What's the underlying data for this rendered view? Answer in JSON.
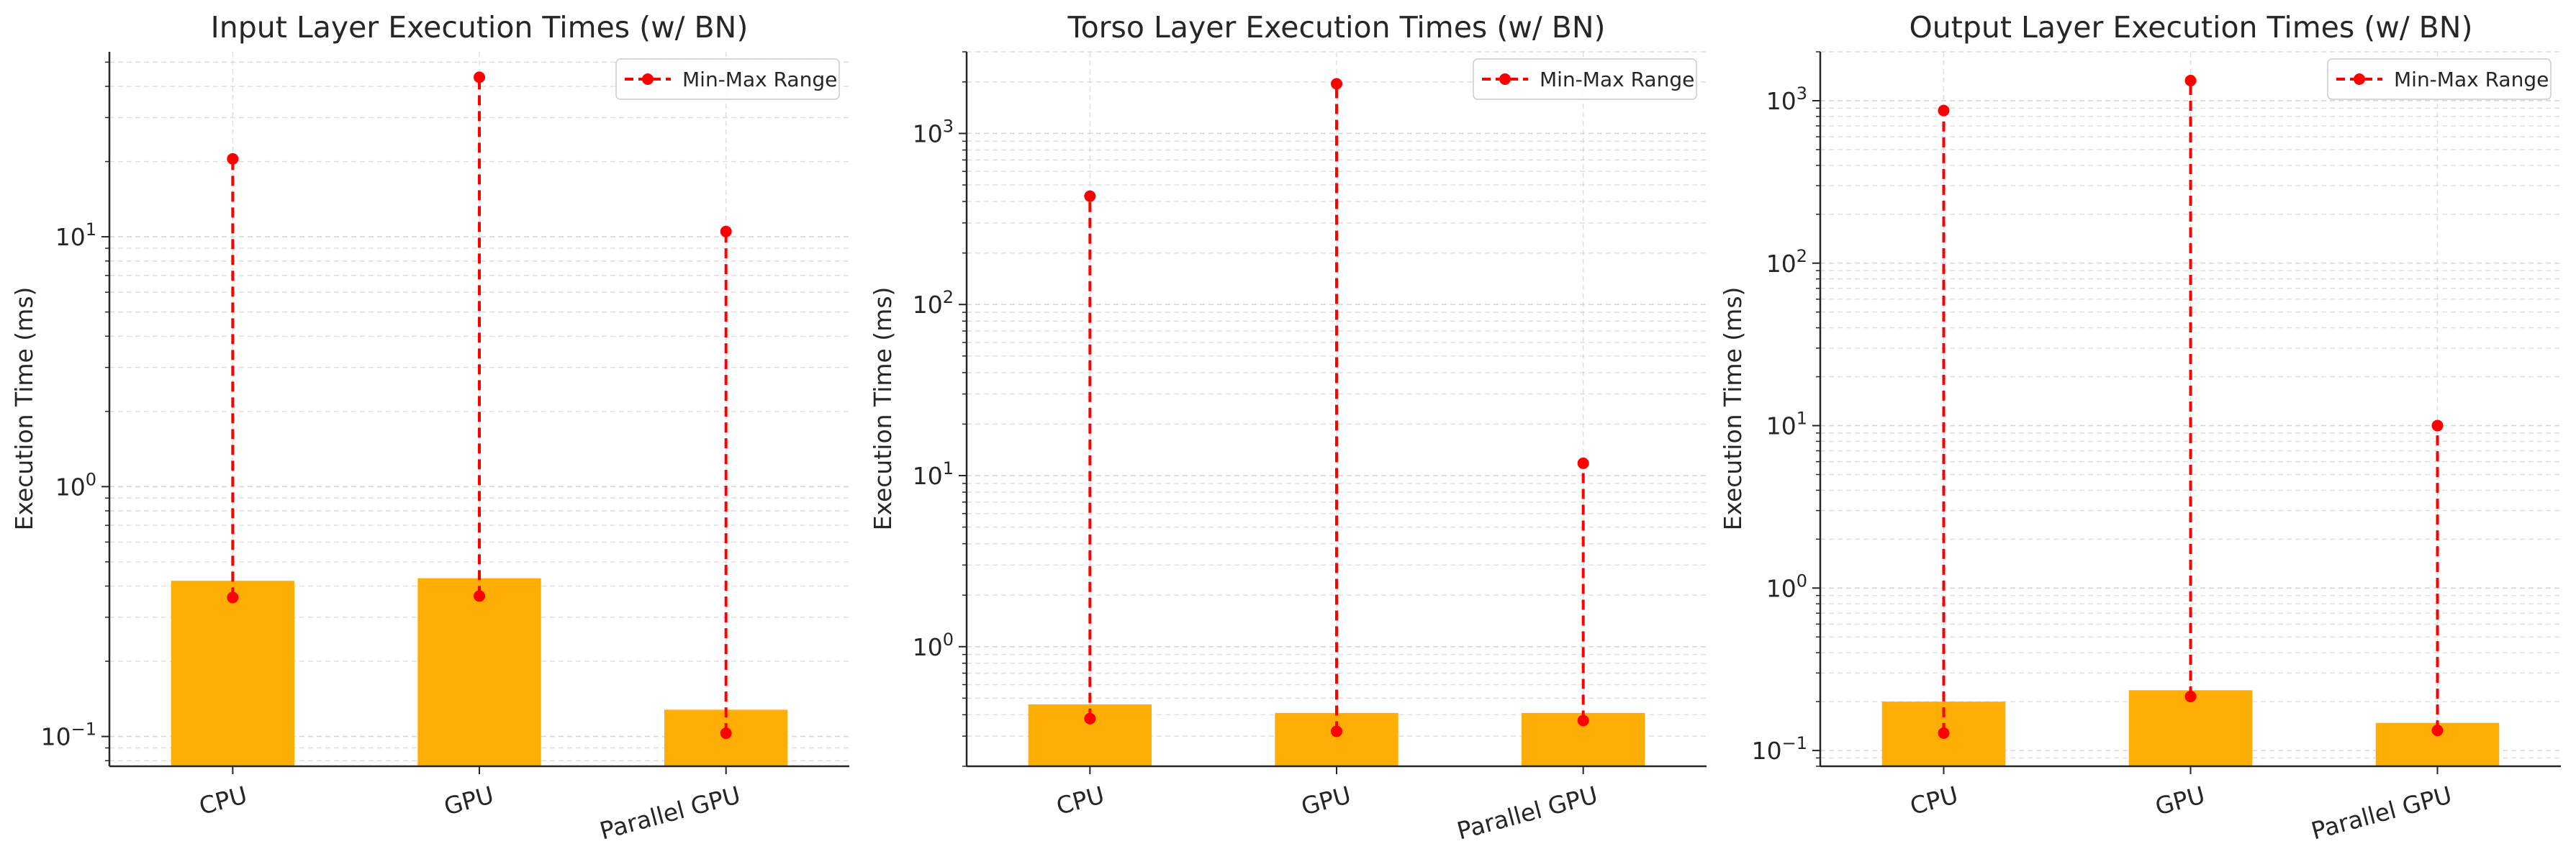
{
  "colors": {
    "bar": "#ffae05",
    "range": "#ff0000",
    "grid": "#d3d3d3",
    "axis": "#262626",
    "text": "#262626",
    "legend_border": "#cccccc"
  },
  "chart_data": [
    {
      "type": "bar",
      "title": "Input Layer Execution Times (w/ BN)",
      "ylabel": "Execution Time (ms)",
      "xlabel": "",
      "yscale": "log",
      "ylim": [
        0.076,
        55
      ],
      "yticks": [
        {
          "value": 0.1,
          "base": "10",
          "exp": "−1"
        },
        {
          "value": 1,
          "base": "10",
          "exp": "0"
        },
        {
          "value": 10,
          "base": "10",
          "exp": "1"
        }
      ],
      "categories": [
        "CPU",
        "GPU",
        "Parallel GPU"
      ],
      "values": [
        0.42,
        0.43,
        0.128
      ],
      "range_min": [
        0.36,
        0.365,
        0.103
      ],
      "range_max": [
        20.5,
        43.5,
        10.5
      ],
      "legend": "Min-Max Range",
      "legend_position": "top-right",
      "grid": true
    },
    {
      "type": "bar",
      "title": "Torso Layer Execution Times (w/ BN)",
      "ylabel": "Execution Time (ms)",
      "xlabel": "",
      "yscale": "log",
      "ylim": [
        0.2,
        3000
      ],
      "yticks": [
        {
          "value": 1,
          "base": "10",
          "exp": "0"
        },
        {
          "value": 10,
          "base": "10",
          "exp": "1"
        },
        {
          "value": 100,
          "base": "10",
          "exp": "2"
        },
        {
          "value": 1000,
          "base": "10",
          "exp": "3"
        }
      ],
      "categories": [
        "CPU",
        "GPU",
        "Parallel GPU"
      ],
      "values": [
        0.46,
        0.41,
        0.41
      ],
      "range_min": [
        0.38,
        0.32,
        0.37
      ],
      "range_max": [
        430,
        1950,
        11.8
      ],
      "legend": "Min-Max Range",
      "legend_position": "top-right",
      "grid": true
    },
    {
      "type": "bar",
      "title": "Output Layer Execution Times (w/ BN)",
      "ylabel": "Execution Time (ms)",
      "xlabel": "",
      "yscale": "log",
      "ylim": [
        0.08,
        2000
      ],
      "yticks": [
        {
          "value": 0.1,
          "base": "10",
          "exp": "−1"
        },
        {
          "value": 1,
          "base": "10",
          "exp": "0"
        },
        {
          "value": 10,
          "base": "10",
          "exp": "1"
        },
        {
          "value": 100,
          "base": "10",
          "exp": "2"
        },
        {
          "value": 1000,
          "base": "10",
          "exp": "3"
        }
      ],
      "categories": [
        "CPU",
        "GPU",
        "Parallel GPU"
      ],
      "values": [
        0.2,
        0.235,
        0.148
      ],
      "range_min": [
        0.128,
        0.215,
        0.133
      ],
      "range_max": [
        870,
        1330,
        10
      ],
      "legend": "Min-Max Range",
      "legend_position": "top-right",
      "grid": true
    }
  ]
}
